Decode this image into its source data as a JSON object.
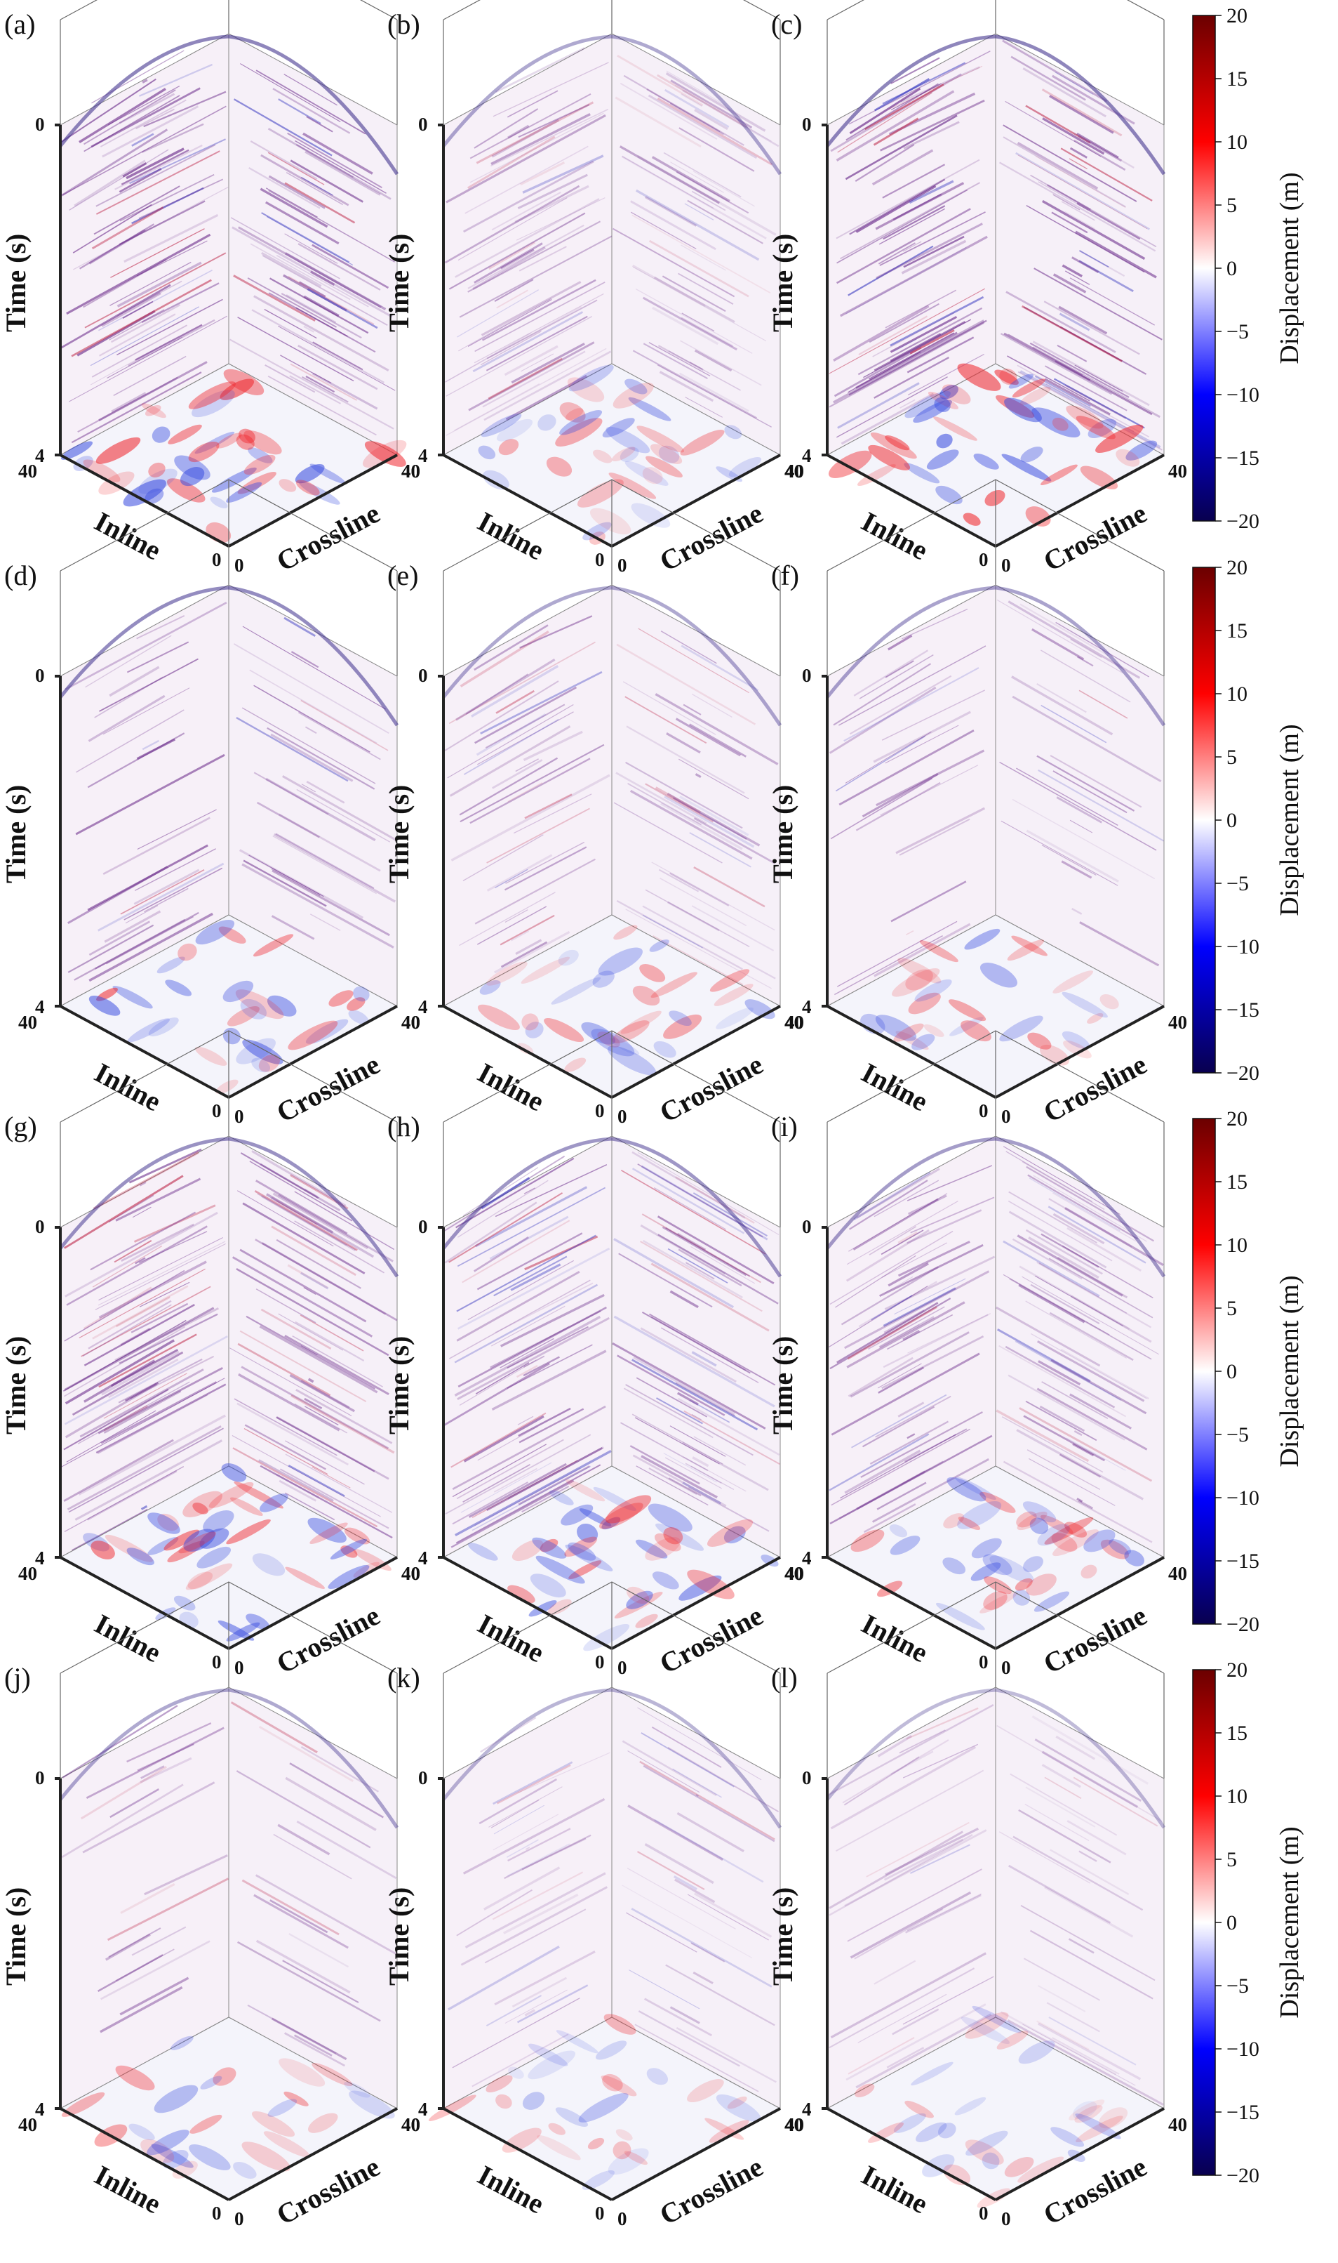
{
  "figure": {
    "panels": [
      {
        "label": "(a)",
        "density": 1.0,
        "base": 0.85
      },
      {
        "label": "(b)",
        "density": 0.85,
        "base": 0.55
      },
      {
        "label": "(c)",
        "density": 1.0,
        "base": 0.85
      },
      {
        "label": "(d)",
        "density": 0.45,
        "base": 0.8
      },
      {
        "label": "(e)",
        "density": 0.6,
        "base": 0.55
      },
      {
        "label": "(f)",
        "density": 0.4,
        "base": 0.6
      },
      {
        "label": "(g)",
        "density": 1.0,
        "base": 0.75
      },
      {
        "label": "(h)",
        "density": 0.95,
        "base": 0.7
      },
      {
        "label": "(i)",
        "density": 0.95,
        "base": 0.65
      },
      {
        "label": "(j)",
        "density": 0.3,
        "base": 0.55
      },
      {
        "label": "(k)",
        "density": 0.45,
        "base": 0.45
      },
      {
        "label": "(l)",
        "density": 0.45,
        "base": 0.4
      }
    ],
    "axes": {
      "time_label": "Time (s)",
      "inline_label": "Inline",
      "crossline_label": "Crossline",
      "time_top_tick": "0",
      "time_bottom_tick": "4",
      "inline_far_tick": "40",
      "inline_near_tick": "0",
      "crossline_near_tick": "0",
      "crossline_far_tick": "40"
    },
    "colorbar": {
      "title": "Displacement (m)",
      "min": -20,
      "max": 20,
      "ticks": [
        "20",
        "15",
        "10",
        "5",
        "0",
        "−5",
        "−10",
        "−15",
        "−20"
      ],
      "colors": [
        "#08004f",
        "#0000ff",
        "#ffffff",
        "#ff0000",
        "#6b0000"
      ]
    },
    "seismic_colors": {
      "trace": "#6a2a8a",
      "negative": "#3a3ac0",
      "positive": "#c03050"
    }
  }
}
